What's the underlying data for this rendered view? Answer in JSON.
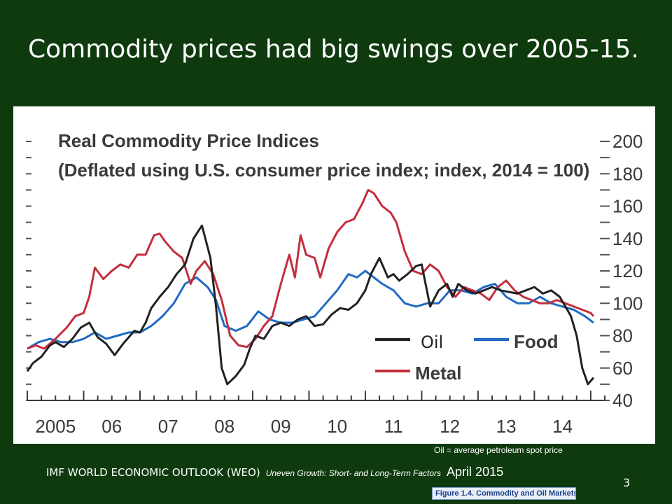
{
  "slide": {
    "title": "Commodity prices had big swings over 2005-15.",
    "footnote": "Oil = average petroleum spot price",
    "footer_org": "IMF WORLD ECONOMIC OUTLOOK (WEO)",
    "footer_subtitle": "Uneven Growth: Short- and Long-Term Factors",
    "footer_date": "April 2015",
    "page_number": "3",
    "source_caption": "Figure 1.4.  Commodity and Oil Markets"
  },
  "chart_data": {
    "type": "line",
    "title": "Real Commodity Price Indices",
    "subtitle": "(Deflated using U.S. consumer price index; index, 2014 = 100)",
    "x_tick_labels": [
      "2005",
      "06",
      "07",
      "08",
      "09",
      "10",
      "11",
      "12",
      "13",
      "14"
    ],
    "xlim": [
      2005,
      2015.25
    ],
    "ylim": [
      40,
      200
    ],
    "y_ticks": [
      40,
      60,
      80,
      100,
      120,
      140,
      160,
      180,
      200
    ],
    "y_axis_position": "right",
    "legend_position": "bottom-right",
    "series": [
      {
        "name": "Oil",
        "color": "#222222",
        "x": [
          2005.0,
          2005.1,
          2005.25,
          2005.4,
          2005.5,
          2005.65,
          2005.8,
          2005.95,
          2006.1,
          2006.25,
          2006.4,
          2006.55,
          2006.7,
          2006.8,
          2006.9,
          2007.0,
          2007.1,
          2007.2,
          2007.35,
          2007.5,
          2007.65,
          2007.8,
          2007.95,
          2008.1,
          2008.25,
          2008.35,
          2008.45,
          2008.55,
          2008.7,
          2008.85,
          2008.95,
          2009.05,
          2009.2,
          2009.35,
          2009.5,
          2009.65,
          2009.8,
          2009.95,
          2010.1,
          2010.25,
          2010.4,
          2010.55,
          2010.7,
          2010.85,
          2011.0,
          2011.1,
          2011.25,
          2011.4,
          2011.5,
          2011.6,
          2011.75,
          2011.9,
          2012.0,
          2012.15,
          2012.3,
          2012.45,
          2012.55,
          2012.65,
          2012.8,
          2012.95,
          2013.1,
          2013.25,
          2013.4,
          2013.55,
          2013.7,
          2013.85,
          2014.0,
          2014.15,
          2014.3,
          2014.45,
          2014.55,
          2014.65,
          2014.75,
          2014.85,
          2014.95,
          2015.05
        ],
        "values": [
          58,
          63,
          67,
          74,
          76,
          73,
          78,
          85,
          88,
          79,
          75,
          68,
          75,
          79,
          83,
          82,
          88,
          97,
          104,
          110,
          118,
          124,
          140,
          148,
          128,
          98,
          60,
          50,
          55,
          62,
          72,
          80,
          78,
          86,
          88,
          86,
          90,
          92,
          86,
          87,
          93,
          97,
          96,
          100,
          108,
          118,
          128,
          116,
          118,
          114,
          118,
          123,
          124,
          98,
          108,
          112,
          104,
          112,
          108,
          106,
          108,
          110,
          108,
          107,
          106,
          108,
          110,
          106,
          108,
          104,
          98,
          92,
          80,
          60,
          50,
          54
        ]
      },
      {
        "name": "Food",
        "color": "#1f6bc4",
        "x": [
          2005.0,
          2005.2,
          2005.4,
          2005.6,
          2005.8,
          2006.0,
          2006.2,
          2006.4,
          2006.6,
          2006.8,
          2007.0,
          2007.2,
          2007.4,
          2007.6,
          2007.8,
          2008.0,
          2008.2,
          2008.35,
          2008.5,
          2008.7,
          2008.9,
          2009.1,
          2009.3,
          2009.5,
          2009.7,
          2009.9,
          2010.1,
          2010.3,
          2010.5,
          2010.7,
          2010.85,
          2011.0,
          2011.15,
          2011.3,
          2011.5,
          2011.7,
          2011.9,
          2012.1,
          2012.3,
          2012.5,
          2012.7,
          2012.9,
          2013.1,
          2013.3,
          2013.5,
          2013.7,
          2013.9,
          2014.1,
          2014.3,
          2014.5,
          2014.7,
          2014.9,
          2015.05
        ],
        "values": [
          72,
          76,
          78,
          76,
          76,
          78,
          82,
          78,
          80,
          82,
          82,
          86,
          92,
          100,
          112,
          116,
          110,
          102,
          86,
          83,
          86,
          95,
          90,
          88,
          88,
          90,
          92,
          100,
          108,
          118,
          116,
          120,
          116,
          112,
          108,
          100,
          98,
          100,
          100,
          108,
          108,
          106,
          110,
          112,
          104,
          100,
          100,
          104,
          100,
          98,
          96,
          92,
          88
        ]
      },
      {
        "name": "Metal",
        "color": "#c42e3c",
        "x": [
          2005.0,
          2005.15,
          2005.3,
          2005.5,
          2005.7,
          2005.85,
          2006.0,
          2006.1,
          2006.2,
          2006.35,
          2006.5,
          2006.65,
          2006.8,
          2006.95,
          2007.1,
          2007.25,
          2007.35,
          2007.45,
          2007.6,
          2007.75,
          2007.9,
          2008.0,
          2008.15,
          2008.3,
          2008.45,
          2008.6,
          2008.75,
          2008.9,
          2009.05,
          2009.2,
          2009.35,
          2009.5,
          2009.65,
          2009.75,
          2009.85,
          2009.95,
          2010.1,
          2010.2,
          2010.35,
          2010.5,
          2010.65,
          2010.8,
          2010.95,
          2011.05,
          2011.15,
          2011.3,
          2011.45,
          2011.55,
          2011.7,
          2011.85,
          2012.0,
          2012.15,
          2012.3,
          2012.45,
          2012.6,
          2012.75,
          2012.9,
          2013.05,
          2013.2,
          2013.35,
          2013.5,
          2013.65,
          2013.8,
          2013.95,
          2014.1,
          2014.25,
          2014.4,
          2014.55,
          2014.7,
          2014.85,
          2015.0,
          2015.05
        ],
        "values": [
          72,
          74,
          72,
          78,
          85,
          92,
          94,
          104,
          122,
          115,
          120,
          124,
          122,
          130,
          130,
          142,
          143,
          138,
          132,
          128,
          112,
          120,
          126,
          118,
          102,
          80,
          74,
          73,
          78,
          86,
          92,
          112,
          130,
          116,
          142,
          130,
          128,
          116,
          134,
          144,
          150,
          152,
          162,
          170,
          168,
          160,
          156,
          150,
          132,
          120,
          118,
          124,
          120,
          110,
          104,
          110,
          108,
          106,
          102,
          110,
          114,
          108,
          104,
          102,
          100,
          100,
          102,
          100,
          98,
          96,
          94,
          92
        ]
      }
    ]
  }
}
